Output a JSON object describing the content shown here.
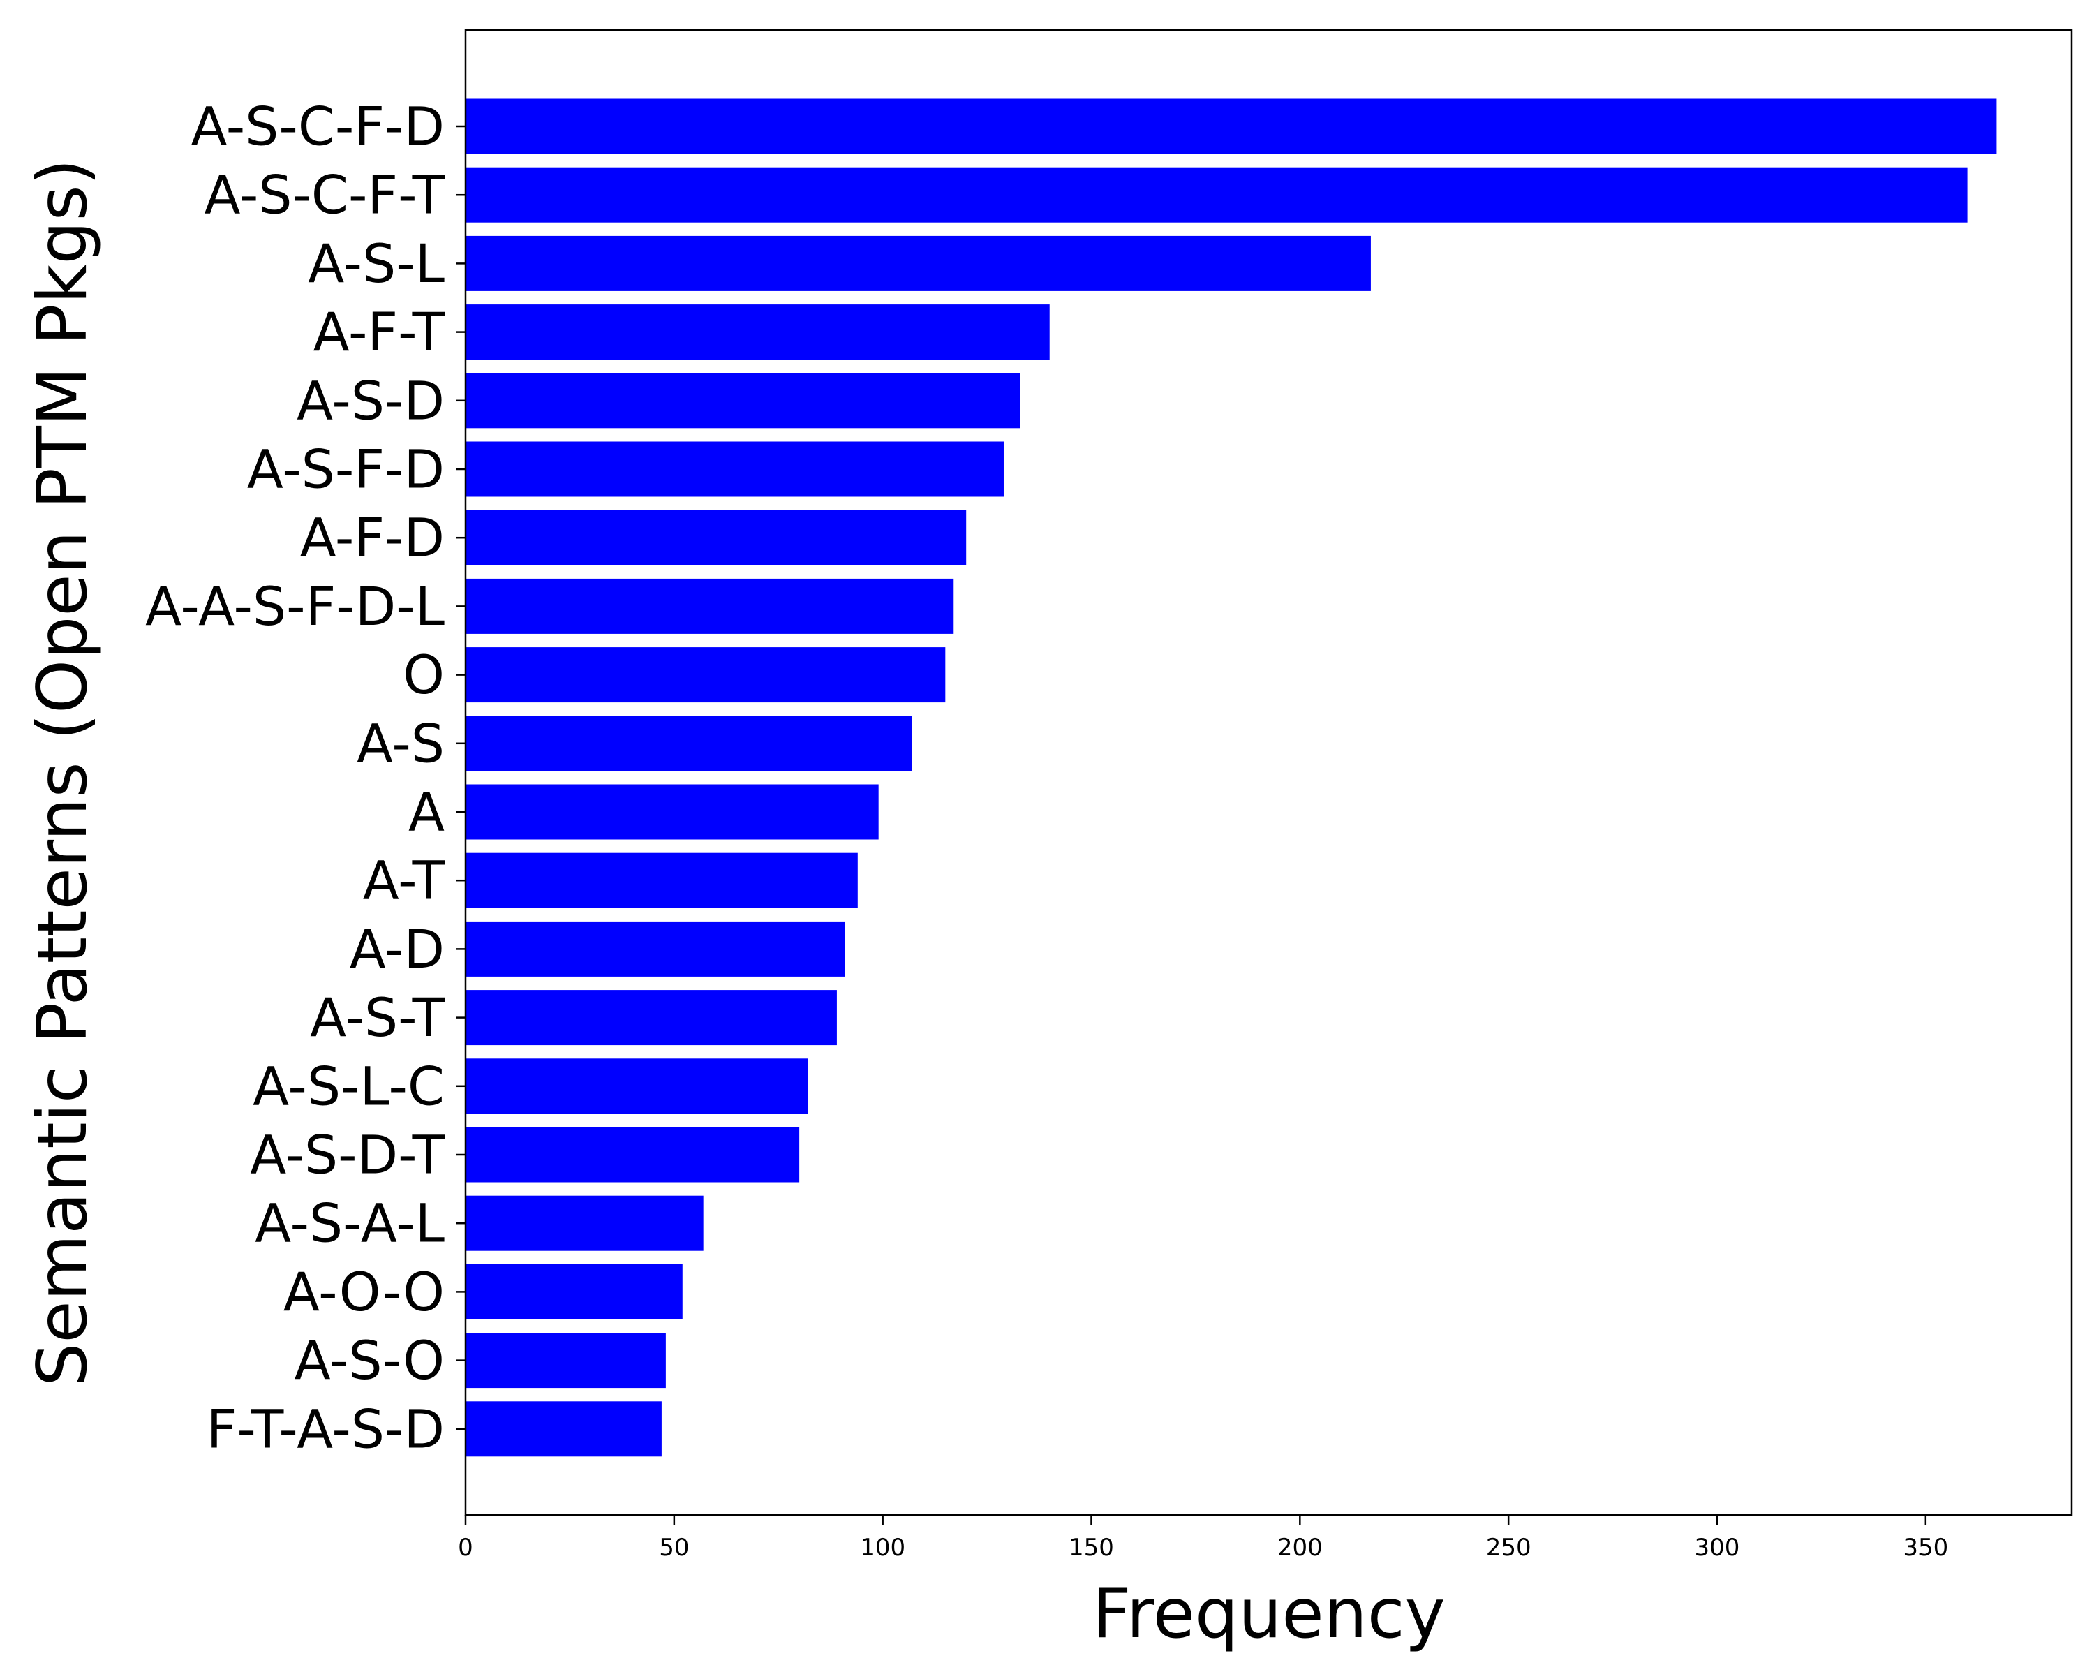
{
  "chart_data": {
    "type": "bar",
    "orientation": "horizontal",
    "title": "",
    "xlabel": "Frequency",
    "ylabel": "Semantic Patterns (Open PTM Pkgs)",
    "categories": [
      "A-S-C-F-D",
      "A-S-C-F-T",
      "A-S-L",
      "A-F-T",
      "A-S-D",
      "A-S-F-D",
      "A-F-D",
      "A-A-S-F-D-L",
      "O",
      "A-S",
      "A",
      "A-T",
      "A-D",
      "A-S-T",
      "A-S-L-C",
      "A-S-D-T",
      "A-S-A-L",
      "A-O-O",
      "A-S-O",
      "F-T-A-S-D"
    ],
    "values": [
      367,
      360,
      217,
      140,
      133,
      129,
      120,
      117,
      115,
      107,
      99,
      94,
      91,
      89,
      82,
      80,
      57,
      52,
      48,
      47
    ],
    "xlim": [
      0,
      385
    ],
    "xticks": [
      "0",
      "50",
      "100",
      "150",
      "200",
      "250",
      "300",
      "350"
    ],
    "xtick_values": [
      0,
      50,
      100,
      150,
      200,
      250,
      300,
      350
    ],
    "grid": false,
    "legend": "none",
    "bar_color": "#0000ff"
  }
}
